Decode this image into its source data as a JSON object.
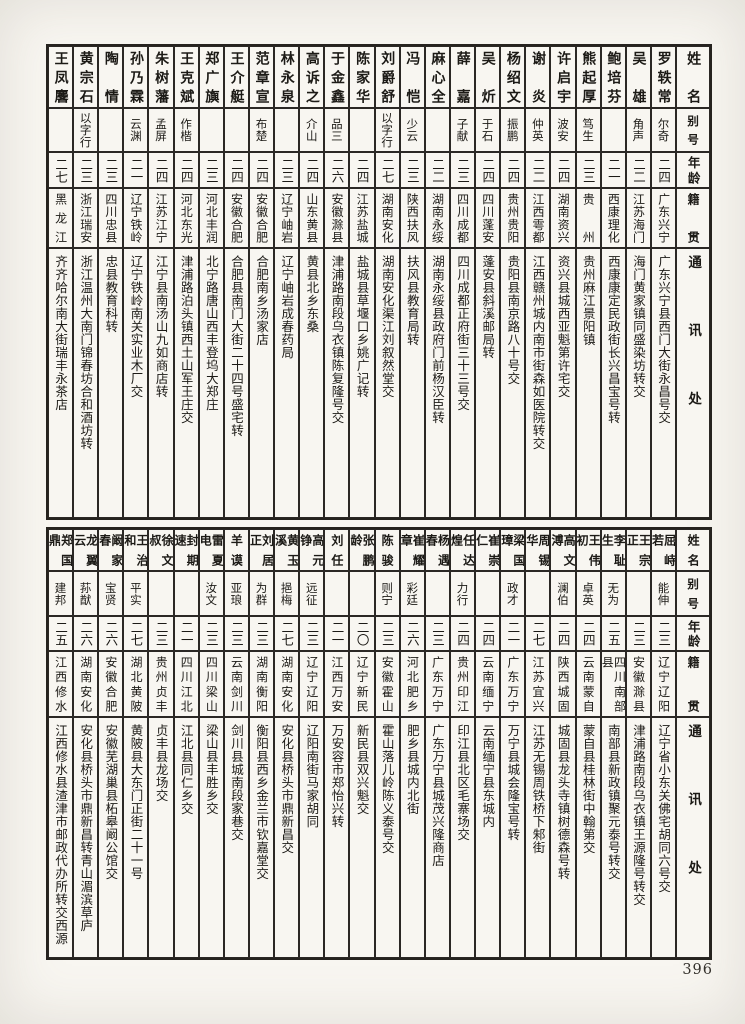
{
  "page": {
    "number": "396"
  },
  "headers": {
    "name": "姓名",
    "alias": "别号",
    "age": "年龄",
    "native": "籍贯",
    "address": "通讯处"
  },
  "tables": [
    {
      "entries": [
        {
          "name": "罗轶常",
          "alias": "尔奇",
          "age": "二四",
          "native": "广东兴宁",
          "address": "广东兴宁县西门大街永昌号交"
        },
        {
          "name": "吴雄",
          "alias": "角声",
          "age": "二二",
          "native": "江苏海门",
          "address": "海门黄家镇同盛染坊转交"
        },
        {
          "name": "鲍培芬",
          "alias": "",
          "age": "二一",
          "native": "西康理化",
          "address": "西康康定民政街长兴昌宝号转"
        },
        {
          "name": "熊起厚",
          "alias": "笃生",
          "age": "二三",
          "native": "贵州",
          "address": "贵州麻江景阳镇"
        },
        {
          "name": "许启宇",
          "alias": "波安",
          "age": "二四",
          "native": "湖南资兴",
          "address": "资兴县城西亚魁第许宅交"
        },
        {
          "name": "谢炎",
          "alias": "仲英",
          "age": "二二",
          "native": "江西雩都",
          "address": "江西赣州城内南市街森如医院转交"
        },
        {
          "name": "杨绍文",
          "alias": "振鹏",
          "age": "二四",
          "native": "贵州贵阳",
          "address": "贵阳县南京路八十号交"
        },
        {
          "name": "吴炘",
          "alias": "于石",
          "age": "二四",
          "native": "四川蓬安",
          "address": "蓬安县斜溪邮局转"
        },
        {
          "name": "薛嘉",
          "alias": "子献",
          "age": "二三",
          "native": "四川成都",
          "address": "四川成都正府街三十三号交"
        },
        {
          "name": "麻心全",
          "alias": "",
          "age": "二二",
          "native": "湖南永绥",
          "address": "湖南永绥县政府门前杨汉臣转"
        },
        {
          "name": "冯恺",
          "alias": "少云",
          "age": "二三",
          "native": "陕西扶风",
          "address": "扶风县教育局转"
        },
        {
          "name": "刘爵舒",
          "alias": "以字行",
          "age": "二七",
          "native": "湖南安化",
          "address": "湖南安化渠江刘叙然堂交"
        },
        {
          "name": "陈家华",
          "alias": "",
          "age": "二四",
          "native": "江苏盐城",
          "address": "盐城县草堰口乡姚广记转"
        },
        {
          "name": "于金鑫",
          "alias": "品三",
          "age": "二六",
          "native": "安徽滁县",
          "address": "津浦路南段乌衣镇陈复隆号交"
        },
        {
          "name": "高诉之",
          "alias": "介山",
          "age": "二四",
          "native": "山东黄县",
          "address": "黄县北乡东桑"
        },
        {
          "name": "林永泉",
          "alias": "",
          "age": "二三",
          "native": "辽宁岫岩",
          "address": "辽宁岫岩成春药局"
        },
        {
          "name": "范章宣",
          "alias": "布楚",
          "age": "二四",
          "native": "安徽合肥",
          "address": "合肥南乡汤家店"
        },
        {
          "name": "王介艇",
          "alias": "",
          "age": "二四",
          "native": "安徽合肥",
          "address": "合肥县南门大街二十四号盛宅转"
        },
        {
          "name": "郑广旟",
          "alias": "",
          "age": "二三",
          "native": "河北丰润",
          "address": "北宁路唐山西丰登坞大郑庄"
        },
        {
          "name": "王克斌",
          "alias": "作楷",
          "age": "二四",
          "native": "河北东光",
          "address": "津浦路泊头镇西土山军王庄交"
        },
        {
          "name": "朱树藩",
          "alias": "孟屏",
          "age": "二四",
          "native": "江苏江宁",
          "address": "江宁县南汤山九如商店转"
        },
        {
          "name": "孙乃霖",
          "alias": "云渊",
          "age": "二一",
          "native": "辽宁铁岭",
          "address": "辽宁铁岭南关实业木厂交"
        },
        {
          "name": "陶情",
          "alias": "",
          "age": "二三",
          "native": "四川忠县",
          "address": "忠县教育科转"
        },
        {
          "name": "黄宗石",
          "alias": "以字行",
          "age": "二三",
          "native": "浙江瑞安",
          "address": "浙江温州大南门锦春坊合和酒坊转"
        },
        {
          "name": "王凤麐",
          "alias": "",
          "age": "二七",
          "native": "黑龙江",
          "address": "齐齐哈尔南大街瑞丰永茶店"
        }
      ]
    },
    {
      "entries": [
        {
          "name": "屈峙若",
          "alias": "能伸",
          "age": "二三",
          "native": "辽宁辽阳",
          "address": "辽宁省小东关佛宅胡同六号交"
        },
        {
          "name": "王宗正",
          "alias": "",
          "age": "二三",
          "native": "安徽滁县",
          "address": "津浦路南段乌衣镇王源隆号转交"
        },
        {
          "name": "李耻生",
          "alias": "无为",
          "age": "二五",
          "native": "四川南部县",
          "address": "南部县新政镇聚元泰号转交"
        },
        {
          "name": "王伟初",
          "alias": "卓英",
          "age": "二四",
          "native": "云南蒙自",
          "address": "蒙自县桂林街中翰第交"
        },
        {
          "name": "高文溥",
          "alias": "澜伯",
          "age": "二四",
          "native": "陕西城固",
          "address": "城固县龙头寺镇树德森号转"
        },
        {
          "name": "周锡华",
          "alias": "",
          "age": "二七",
          "native": "江苏宜兴",
          "address": "江苏无锡周铁桥下邾街"
        },
        {
          "name": "梁国璋",
          "alias": "政才",
          "age": "二一",
          "native": "广东万宁",
          "address": "万宁县城会隆宝号转"
        },
        {
          "name": "崔崇仁",
          "alias": "",
          "age": "二四",
          "native": "云南缅宁",
          "address": "云南缅宁县东城内"
        },
        {
          "name": "任达煌",
          "alias": "力行",
          "age": "二四",
          "native": "贵州印江",
          "address": "印江县北区毛寨场交"
        },
        {
          "name": "杨遇春",
          "alias": "",
          "age": "二三",
          "native": "广东万宁",
          "address": "广东万宁县城茂兴隆商店"
        },
        {
          "name": "崔耀章",
          "alias": "彩廷",
          "age": "二六",
          "native": "河北肥乡",
          "address": "肥乡县城内北街"
        },
        {
          "name": "陈骏",
          "alias": "则宁",
          "age": "二三",
          "native": "安徽霍山",
          "address": "霍山落儿岭陈义泰号交"
        },
        {
          "name": "张鹏龄",
          "alias": "",
          "age": "二〇",
          "native": "辽宁新民",
          "address": "新民县双兴魁交"
        },
        {
          "name": "刘任",
          "alias": "",
          "age": "二一",
          "native": "江西万安",
          "address": "万安容市郑怡兴转"
        },
        {
          "name": "高元铮",
          "alias": "远征",
          "age": "二三",
          "native": "辽宁辽阳",
          "address": "辽阳南街马家胡同"
        },
        {
          "name": "黄玉溪",
          "alias": "挹梅",
          "age": "二七",
          "native": "湖南安化",
          "address": "安化县桥头市鼎新昌交"
        },
        {
          "name": "刘居正",
          "alias": "为群",
          "age": "二三",
          "native": "湖南衡阳",
          "address": "衡阳县西乡金兰市钦嘉堂交"
        },
        {
          "name": "羊谟",
          "alias": "亚琅",
          "age": "二三",
          "native": "云南剑川",
          "address": "剑川县城南段家巷交"
        },
        {
          "name": "雷夏电",
          "alias": "汝文",
          "age": "二三",
          "native": "四川梁山",
          "address": "梁山县丰胜乡交"
        },
        {
          "name": "封期速",
          "alias": "",
          "age": "二一",
          "native": "四川江北",
          "address": "江北县同仁乡交"
        },
        {
          "name": "徐文叔",
          "alias": "",
          "age": "二三",
          "native": "贵州贞丰",
          "address": "贞丰县龙场交"
        },
        {
          "name": "王治和",
          "alias": "平实",
          "age": "二七",
          "native": "湖北黄陂",
          "address": "黄陂县大东门正街二十一号"
        },
        {
          "name": "阚家春",
          "alias": "宝贤",
          "age": "二六",
          "native": "安徽合肥",
          "address": "安徽芜湖巢县柘皋阚公馆交"
        },
        {
          "name": "龙翼云",
          "alias": "荪猷",
          "age": "二六",
          "native": "湖南安化",
          "address": "安化县桥头市鼎新昌转青山湄滨草庐"
        },
        {
          "name": "郑国鼎",
          "alias": "建邦",
          "age": "二五",
          "native": "江西修水",
          "address": "江西修水县渣津市邮政代办所转交西源"
        }
      ]
    }
  ]
}
